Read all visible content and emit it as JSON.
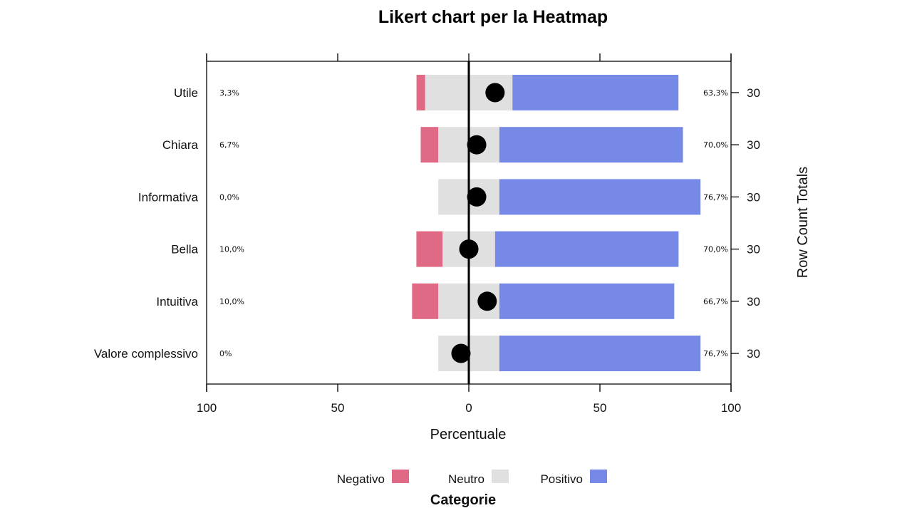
{
  "chart_data": {
    "type": "bar",
    "subtype": "diverging-likert",
    "title": "Likert chart per la Heatmap",
    "xlabel": "Percentuale",
    "right_axis_label": "Row Count Totals",
    "xlim": [
      -100,
      100
    ],
    "x_ticks": [
      -100,
      -50,
      0,
      50,
      100
    ],
    "x_tick_labels": [
      "100",
      "50",
      "0",
      "50",
      "100"
    ],
    "categories": [
      "Utile",
      "Chiara",
      "Informativa",
      "Bella",
      "Intuitiva",
      "Valore complessivo"
    ],
    "series": [
      {
        "name": "Negativo",
        "color": "#e06a85",
        "values": [
          3.3,
          6.7,
          0.0,
          10.0,
          10.0,
          0.0
        ]
      },
      {
        "name": "Neutro",
        "color": "#e0e0e0",
        "values": [
          33.3,
          23.3,
          23.3,
          20.0,
          23.3,
          23.3
        ]
      },
      {
        "name": "Positivo",
        "color": "#7689e6",
        "values": [
          63.3,
          70.0,
          76.7,
          70.0,
          66.7,
          76.7
        ]
      }
    ],
    "negative_labels": [
      "3,3%",
      "6,7%",
      "0,0%",
      "10,0%",
      "10,0%",
      "0%"
    ],
    "positive_labels": [
      "63,3%",
      "70,0%",
      "76,7%",
      "70,0%",
      "66,7%",
      "76,7%"
    ],
    "row_totals": [
      "30",
      "30",
      "30",
      "30",
      "30",
      "30"
    ],
    "mean_points": [
      10,
      3,
      3,
      0,
      7,
      -3
    ],
    "legend": {
      "title": "Categorie",
      "position": "bottom",
      "items": [
        "Negativo",
        "Neutro",
        "Positivo"
      ]
    },
    "zero_line": true,
    "grid": false
  }
}
